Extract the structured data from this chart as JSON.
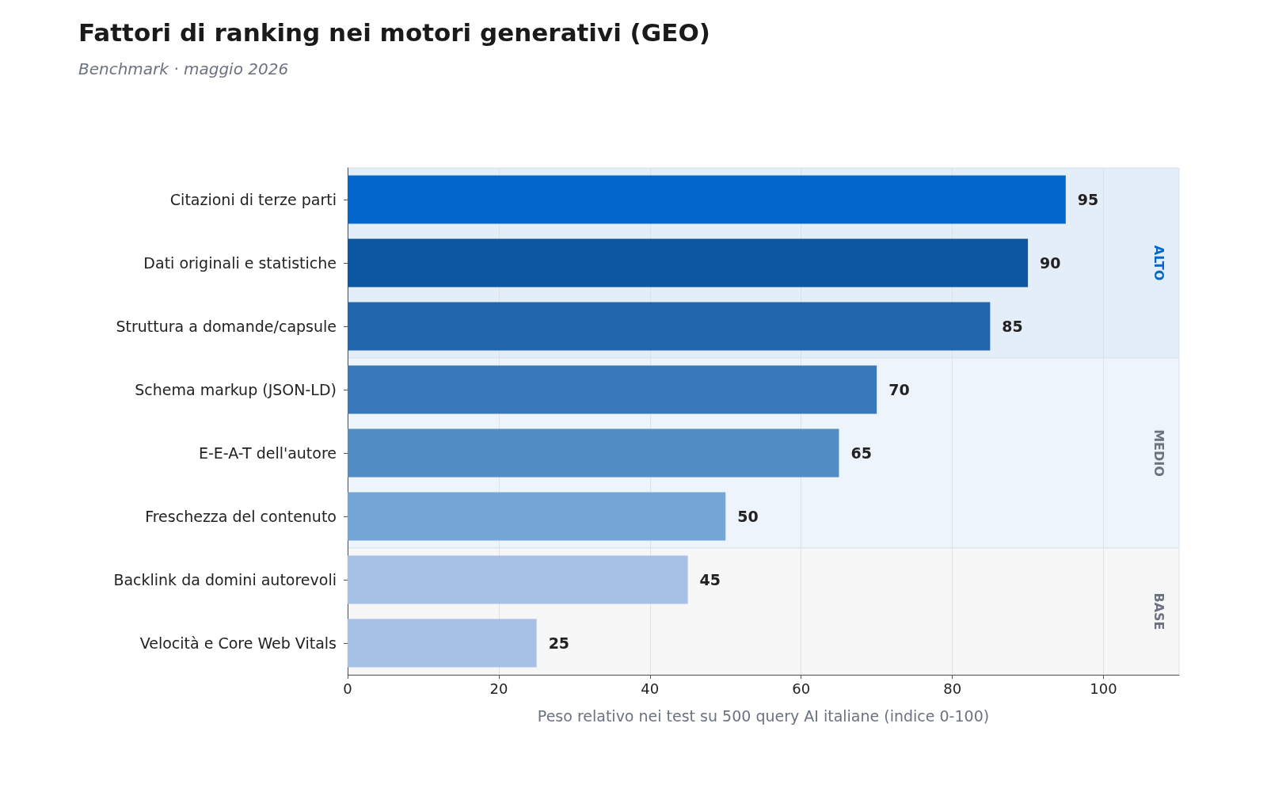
{
  "chart_data": {
    "type": "bar",
    "orientation": "horizontal",
    "title": "Fattori di ranking nei motori generativi (GEO)",
    "subtitle": "Benchmark · maggio 2026",
    "xlabel": "Peso relativo nei test su 500 query AI italiane (indice 0-100)",
    "categories": [
      "Citazioni di terze parti",
      "Dati originali e statistiche",
      "Struttura a domande/capsule",
      "Schema markup (JSON-LD)",
      "E-E-A-T dell'autore",
      "Freschezza del contenuto",
      "Backlink da domini autorevoli",
      "Velocità e Core Web Vitals"
    ],
    "values": [
      95,
      90,
      85,
      70,
      65,
      50,
      45,
      25
    ],
    "colors": [
      "#0366cc",
      "#0d57a1",
      "#2166ad",
      "#3979b9",
      "#538dc6",
      "#74a5d7",
      "#a6c1e5",
      "#a6c1e5"
    ],
    "xlim": [
      0,
      110
    ],
    "xticks": [
      0,
      20,
      40,
      60,
      80,
      100
    ],
    "grid": "x",
    "data_labels": true,
    "bands": [
      {
        "axis": "y",
        "from": "Citazioni di terze parti",
        "to": "Struttura a domande/capsule",
        "label": "ALTO",
        "color": "#e3eef9"
      },
      {
        "axis": "y",
        "from": "Schema markup (JSON-LD)",
        "to": "Freschezza del contenuto",
        "label": "MEDIO",
        "color": "#eef4fb"
      },
      {
        "axis": "y",
        "from": "Backlink da domini autorevoli",
        "to": "Velocità e Core Web Vitals",
        "label": "BASE",
        "color": "#f7f7f7"
      }
    ]
  }
}
